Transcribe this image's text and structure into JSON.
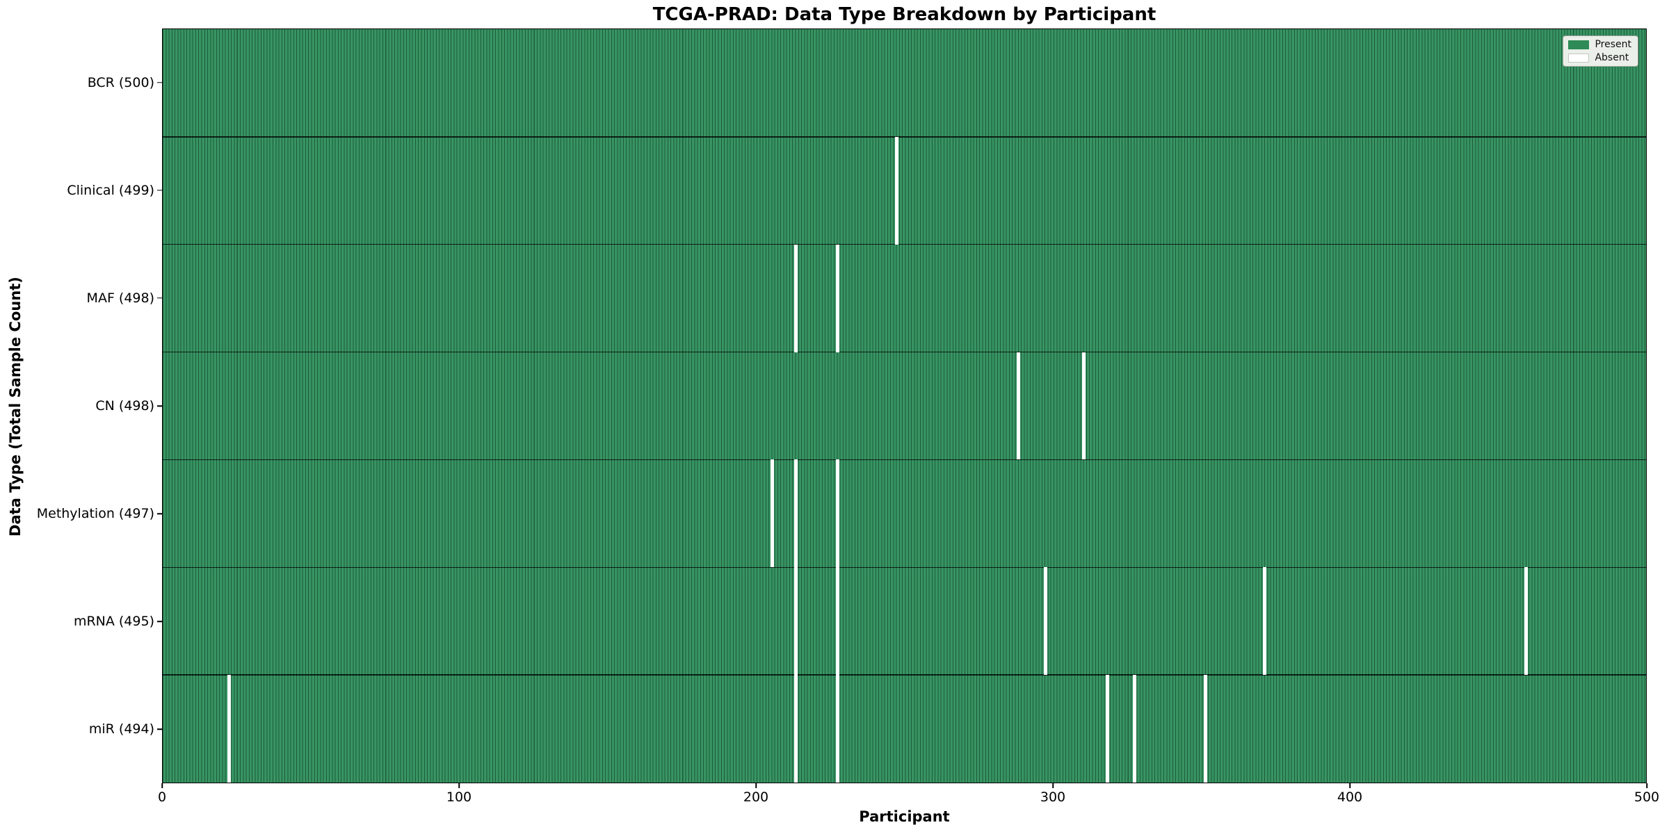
{
  "chart_data": {
    "type": "heatmap",
    "title": "TCGA-PRAD: Data Type Breakdown by Participant",
    "xlabel": "Participant",
    "ylabel": "Data Type (Total Sample Count)",
    "x_range": [
      0,
      500
    ],
    "x_ticks": [
      0,
      100,
      200,
      300,
      400,
      500
    ],
    "n_participants": 500,
    "grid": false,
    "legend_position": "upper-right",
    "legend": [
      {
        "label": "Present",
        "color": "#2e8b57"
      },
      {
        "label": "Absent",
        "color": "#ffffff"
      }
    ],
    "colors": {
      "bar_fill": "#389463",
      "bar_edge": "#1d5c3a",
      "absent": "#ffffff"
    },
    "rows": [
      {
        "label": "BCR (500)",
        "total": 500,
        "absent_participants": []
      },
      {
        "label": "Clinical (499)",
        "total": 499,
        "absent_participants": [
          247
        ]
      },
      {
        "label": "MAF (498)",
        "total": 498,
        "absent_participants": [
          213,
          227
        ]
      },
      {
        "label": "CN (498)",
        "total": 498,
        "absent_participants": [
          288,
          310
        ]
      },
      {
        "label": "Methylation (497)",
        "total": 497,
        "absent_participants": [
          205,
          213,
          227
        ]
      },
      {
        "label": "mRNA (495)",
        "total": 495,
        "absent_participants": [
          213,
          227,
          297,
          371,
          459
        ]
      },
      {
        "label": "miR (494)",
        "total": 494,
        "absent_participants": [
          22,
          213,
          227,
          318,
          327,
          351
        ]
      }
    ]
  }
}
